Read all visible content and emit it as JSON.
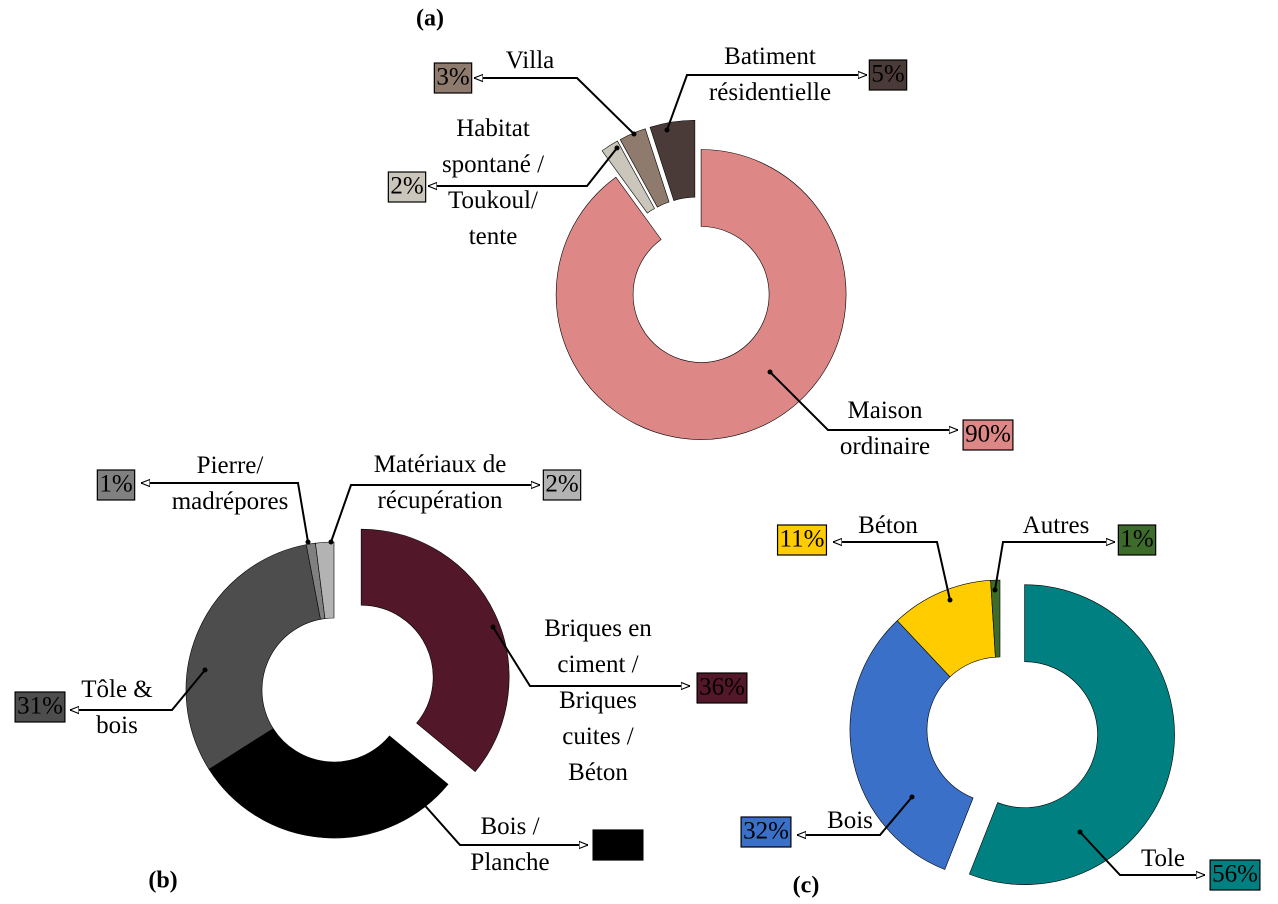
{
  "chart_data": [
    {
      "type": "pie",
      "title": "(a)",
      "categories": [
        "Maison\nordinaire",
        "Habitat\nspontané /\nToukoul/\ntente",
        "Villa",
        "Batiment\nrésidentielle"
      ],
      "values": [
        90,
        2,
        3,
        5
      ],
      "value_labels": [
        "90%",
        "2%",
        "3%",
        "5%"
      ],
      "colors": [
        "#dd8886",
        "#cbc6bb",
        "#8f7a6e",
        "#4a3a38"
      ]
    },
    {
      "type": "pie",
      "title": "(b)",
      "categories": [
        "Briques en\nciment /\nBriques\ncuites /\nBéton",
        "Bois /\nPlanche",
        "Tôle &\nbois",
        "Pierre/\nmadrépores",
        "Matériaux de\nrécupération"
      ],
      "values": [
        36,
        30,
        31,
        1,
        2
      ],
      "value_labels": [
        "36%",
        "30%",
        "31%",
        "1%",
        "2%"
      ],
      "colors": [
        "#521729",
        "#000000",
        "#4d4d4d",
        "#808080",
        "#b3b3b3"
      ]
    },
    {
      "type": "pie",
      "title": "(c)",
      "categories": [
        "Tole",
        "Bois",
        "Béton",
        "Autres"
      ],
      "values": [
        56,
        32,
        11,
        1
      ],
      "value_labels": [
        "56%",
        "32%",
        "11%",
        "1%"
      ],
      "colors": [
        "#008080",
        "#3a70c8",
        "#ffcc00",
        "#3d6b2b"
      ]
    }
  ]
}
